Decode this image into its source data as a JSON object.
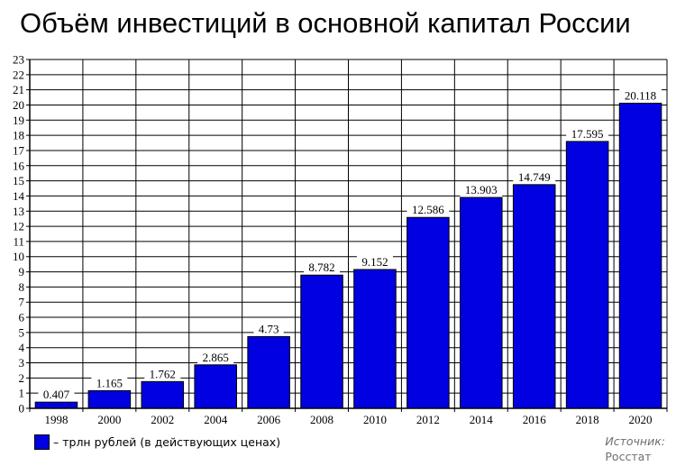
{
  "page": {
    "title": "Объём инвестиций в основной капитал России",
    "legend_label": "– трлн рублей (в действующих ценах)",
    "source_label": "Источник:",
    "source_name": "Росстат"
  },
  "colors": {
    "bar": "#0000e0",
    "bar_outline": "#000000",
    "grid": "#000000"
  },
  "chart_data": {
    "type": "bar",
    "title": "Объём инвестиций в основной капитал России",
    "xlabel": "",
    "ylabel": "",
    "categories": [
      "1998",
      "2000",
      "2002",
      "2004",
      "2006",
      "2008",
      "2010",
      "2012",
      "2014",
      "2016",
      "2018",
      "2020"
    ],
    "values": [
      0.407,
      1.165,
      1.762,
      2.865,
      4.73,
      8.782,
      9.152,
      12.586,
      13.903,
      14.749,
      17.595,
      20.118
    ],
    "data_labels": [
      "0.407",
      "1.165",
      "1.762",
      "2.865",
      "4.73",
      "8.782",
      "9.152",
      "12.586",
      "13.903",
      "14.749",
      "17.595",
      "20.118"
    ],
    "series": [
      {
        "name": "трлн рублей (в действующих ценах)",
        "values": [
          0.407,
          1.165,
          1.762,
          2.865,
          4.73,
          8.782,
          9.152,
          12.586,
          13.903,
          14.749,
          17.595,
          20.118
        ]
      }
    ],
    "ylim": [
      0,
      23
    ],
    "y_ticks": [
      0,
      1,
      2,
      3,
      4,
      5,
      6,
      7,
      8,
      9,
      10,
      11,
      12,
      13,
      14,
      15,
      16,
      17,
      18,
      19,
      20,
      21,
      22,
      23
    ],
    "grid": true,
    "legend_position": "bottom-left"
  }
}
